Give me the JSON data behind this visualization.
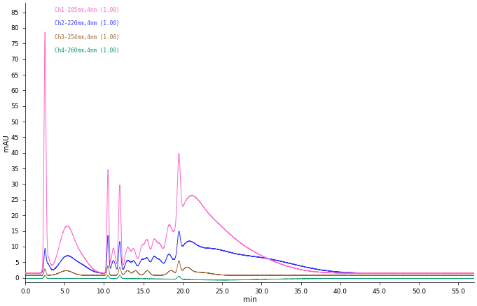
{
  "title": "",
  "ylabel": "mAU",
  "xlabel": "min",
  "xlim": [
    0,
    57
  ],
  "ylim": [
    -1.5,
    88
  ],
  "yticks": [
    0,
    5,
    10,
    15,
    20,
    25,
    30,
    35,
    40,
    45,
    50,
    55,
    60,
    65,
    70,
    75,
    80,
    85
  ],
  "xticks": [
    0.0,
    5.0,
    10.0,
    15.0,
    20.0,
    25.0,
    30.0,
    35.0,
    40.0,
    45.0,
    50.0,
    55.0
  ],
  "background_color": "#ffffff",
  "channels": [
    {
      "label": "Ch1-205nm,4nm (1.00)",
      "color": "#ff66cc"
    },
    {
      "label": "Ch2-220nm,4nm (1.00)",
      "color": "#3333ff"
    },
    {
      "label": "Ch3-254nm,4nm (1.00)",
      "color": "#996633"
    },
    {
      "label": "Ch4-260nm,4nm (1.00)",
      "color": "#009966"
    }
  ]
}
